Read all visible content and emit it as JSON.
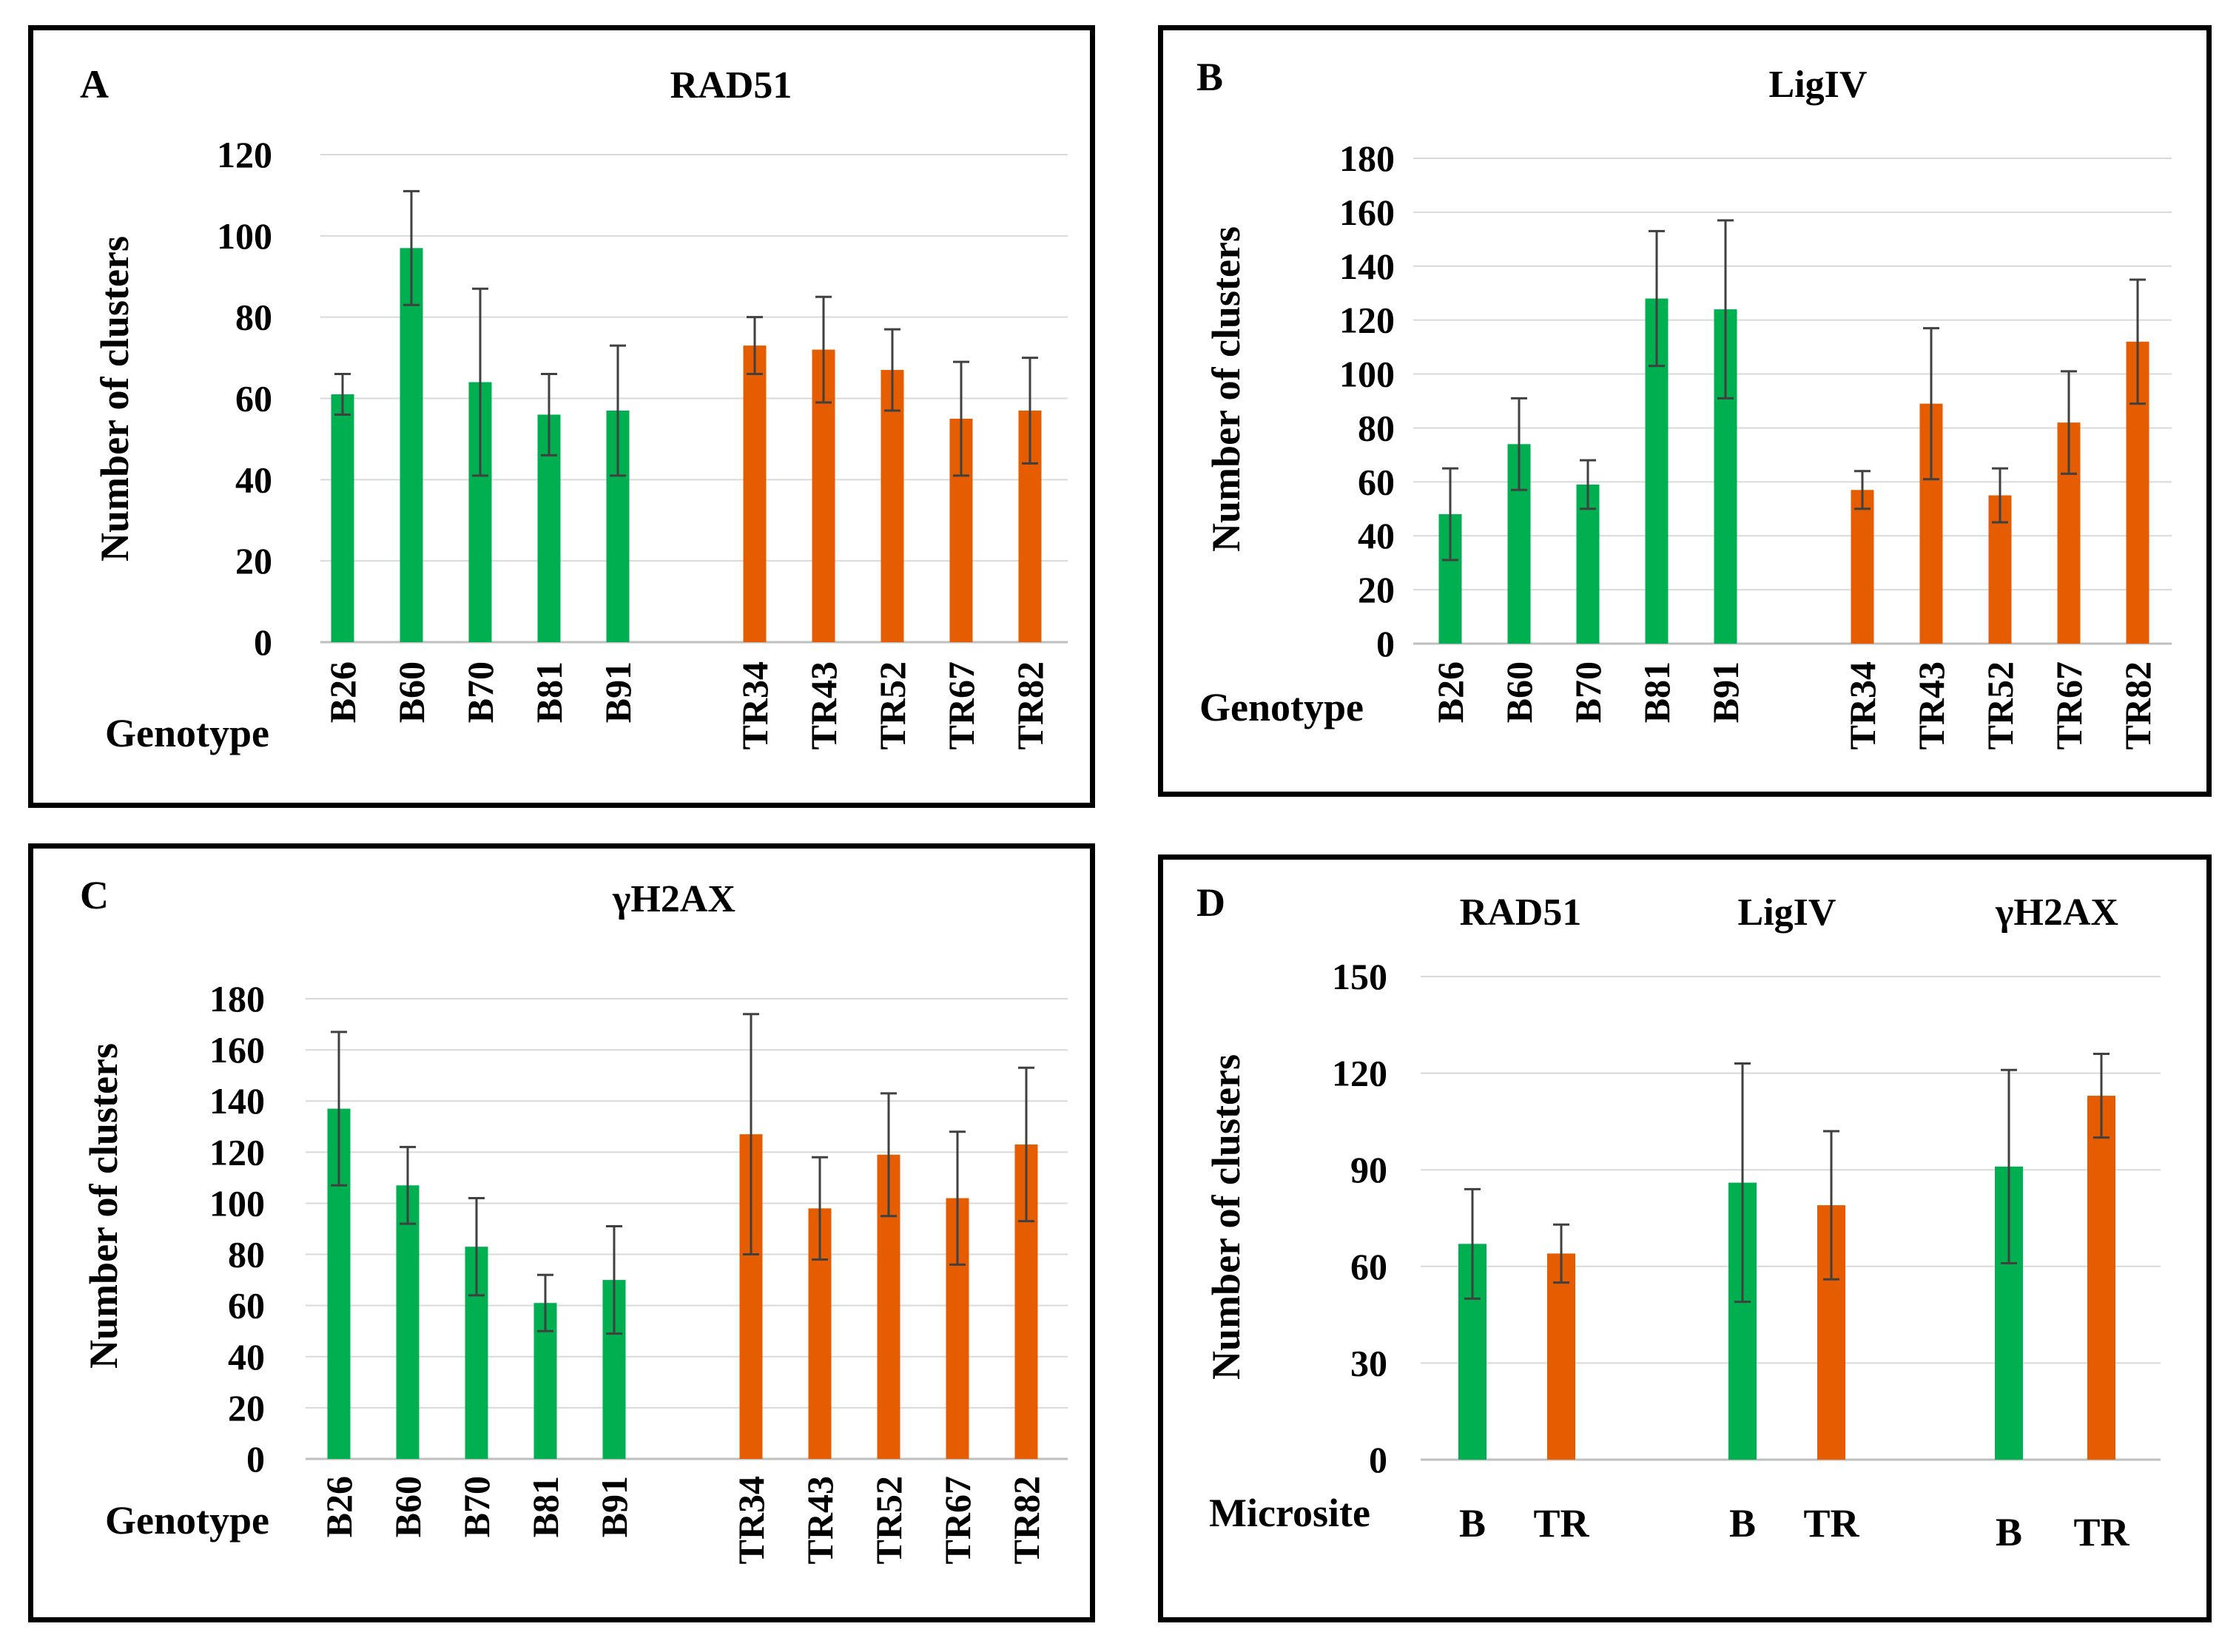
{
  "colors": {
    "b": "#00B050",
    "tr": "#E65C00",
    "grid": "#d9d9d9",
    "axis": "#bfbfbf",
    "err": "#404040"
  },
  "chart_data": [
    {
      "panel_id": "A",
      "type": "bar",
      "title": "RAD51",
      "ylabel": "Number of clusters",
      "xlabel": "Genotype",
      "ylim": [
        0,
        120
      ],
      "yticks": [
        0,
        20,
        40,
        60,
        80,
        100,
        120
      ],
      "grid": true,
      "categories": [
        "B26",
        "B60",
        "B70",
        "B81",
        "B91",
        "TR34",
        "TR43",
        "TR52",
        "TR67",
        "TR82"
      ],
      "groups": [
        "B",
        "B",
        "B",
        "B",
        "B",
        "TR",
        "TR",
        "TR",
        "TR",
        "TR"
      ],
      "values": [
        61,
        97,
        64,
        56,
        57,
        73,
        72,
        67,
        55,
        57
      ],
      "errors": [
        5,
        14,
        23,
        10,
        16,
        7,
        13,
        10,
        14,
        13
      ]
    },
    {
      "panel_id": "B",
      "type": "bar",
      "title": "LigIV",
      "ylabel": "Number of clusters",
      "xlabel": "Genotype",
      "ylim": [
        0,
        180
      ],
      "yticks": [
        0,
        20,
        40,
        60,
        80,
        100,
        120,
        140,
        160,
        180
      ],
      "grid": true,
      "categories": [
        "B26",
        "B60",
        "B70",
        "B81",
        "B91",
        "TR34",
        "TR43",
        "TR52",
        "TR67",
        "TR82"
      ],
      "groups": [
        "B",
        "B",
        "B",
        "B",
        "B",
        "TR",
        "TR",
        "TR",
        "TR",
        "TR"
      ],
      "values": [
        48,
        74,
        59,
        128,
        124,
        57,
        89,
        55,
        82,
        112
      ],
      "errors": [
        17,
        17,
        9,
        25,
        33,
        7,
        28,
        10,
        19,
        23
      ]
    },
    {
      "panel_id": "C",
      "type": "bar",
      "title": "γH2AX",
      "ylabel": "Number of clusters",
      "xlabel": "Genotype",
      "ylim": [
        0,
        180
      ],
      "yticks": [
        0,
        20,
        40,
        60,
        80,
        100,
        120,
        140,
        160,
        180
      ],
      "grid": true,
      "categories": [
        "B26",
        "B60",
        "B70",
        "B81",
        "B91",
        "TR34",
        "TR43",
        "TR52",
        "TR67",
        "TR82"
      ],
      "groups": [
        "B",
        "B",
        "B",
        "B",
        "B",
        "TR",
        "TR",
        "TR",
        "TR",
        "TR"
      ],
      "values": [
        137,
        107,
        83,
        61,
        70,
        127,
        98,
        119,
        102,
        123
      ],
      "errors": [
        30,
        15,
        19,
        11,
        21,
        47,
        20,
        24,
        26,
        30
      ]
    },
    {
      "panel_id": "D",
      "type": "bar",
      "title": "",
      "ylabel": "Number of clusters",
      "xlabel": "Microsite",
      "ylim": [
        0,
        150
      ],
      "yticks": [
        0,
        30,
        60,
        90,
        120,
        150
      ],
      "grid": true,
      "group_titles": [
        "RAD51",
        "LigIV",
        "γH2AX"
      ],
      "categories": [
        "B",
        "TR",
        "B",
        "TR",
        "B",
        "TR"
      ],
      "groups": [
        "B",
        "TR",
        "B",
        "TR",
        "B",
        "TR"
      ],
      "values": [
        67,
        64,
        86,
        79,
        91,
        113
      ],
      "errors": [
        17,
        9,
        37,
        23,
        30,
        13
      ]
    }
  ]
}
